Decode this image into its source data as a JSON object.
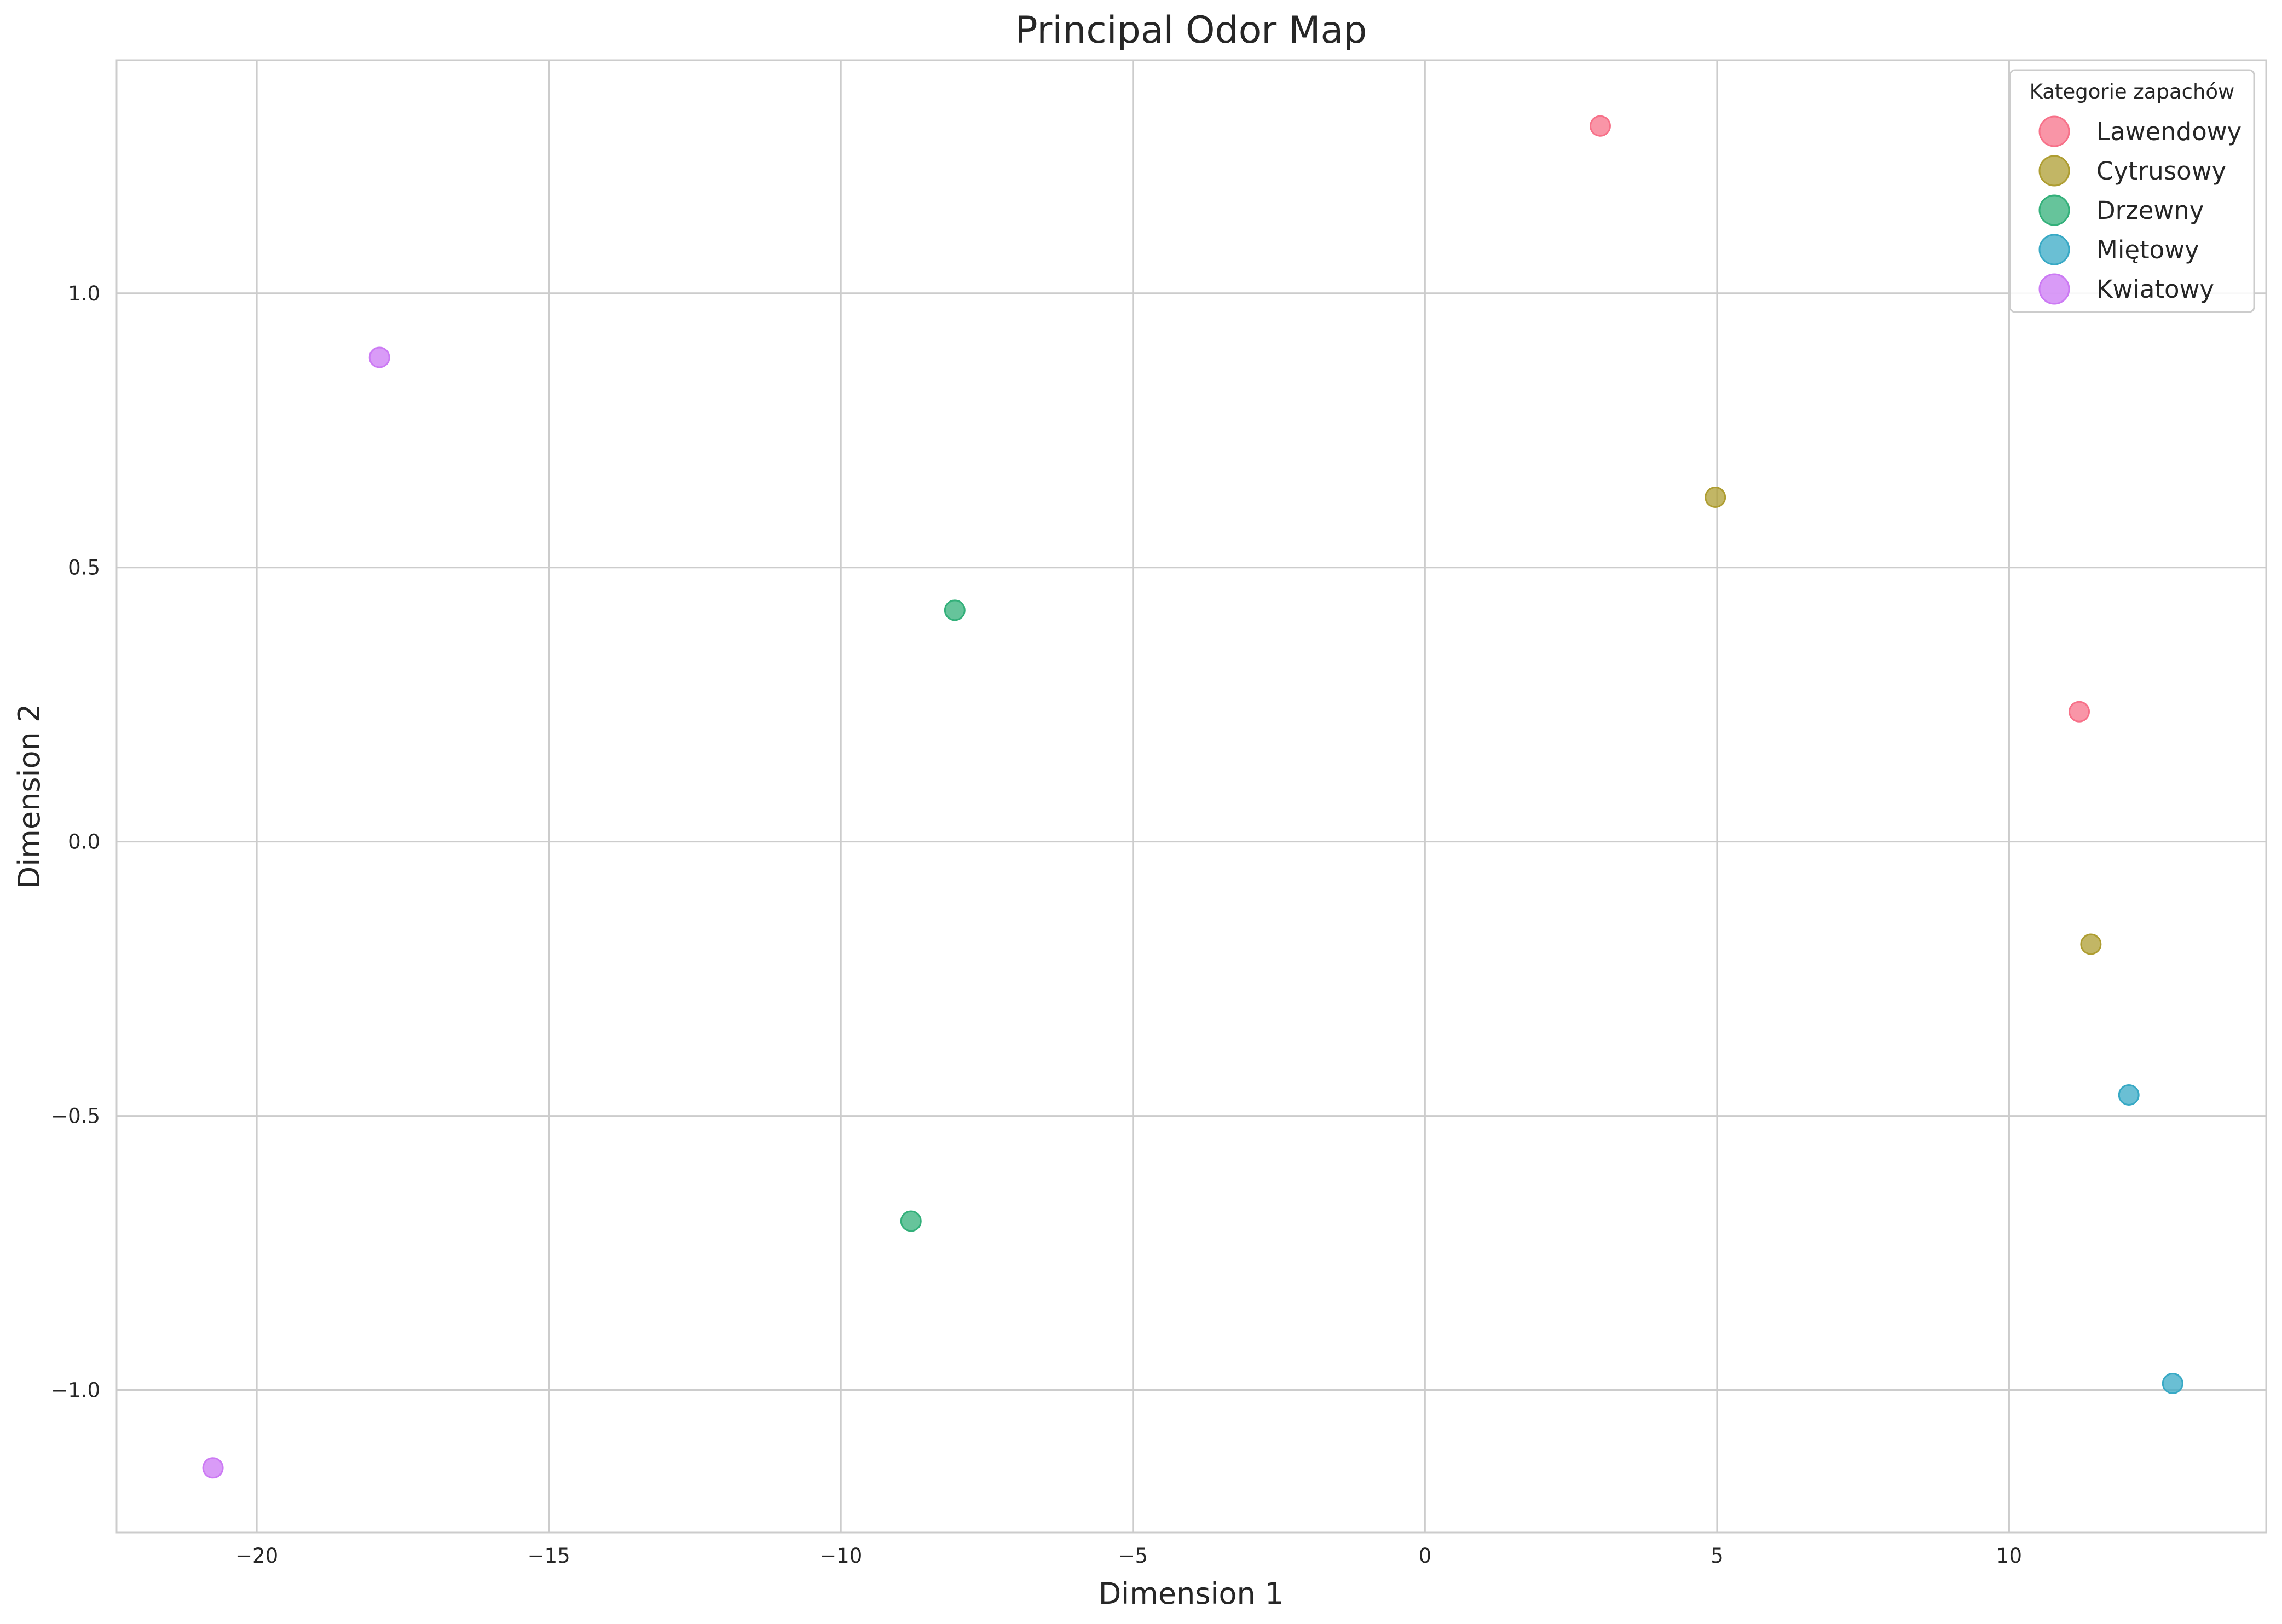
{
  "chart_data": {
    "type": "scatter",
    "title": "Principal Odor Map",
    "xlabel": "Dimension 1",
    "ylabel": "Dimension 2",
    "xlim": [
      -22.4,
      14.4
    ],
    "ylim": [
      -1.26,
      1.425
    ],
    "xticks": [
      -20,
      -15,
      -10,
      -5,
      0,
      5,
      10
    ],
    "xtick_labels": [
      "−20",
      "−15",
      "−10",
      "−5",
      "0",
      "5",
      "10"
    ],
    "yticks": [
      -1.0,
      -0.5,
      0.0,
      0.5,
      1.0
    ],
    "ytick_labels": [
      "−1.0",
      "−0.5",
      "0.0",
      "0.5",
      "1.0"
    ],
    "grid": true,
    "legend": {
      "title": "Kategorie zapachów",
      "placement": "top-right"
    },
    "series": [
      {
        "name": "Lawendowy",
        "color": "#f77189",
        "points": [
          {
            "x": 3.0,
            "y": 1.305
          },
          {
            "x": 11.2,
            "y": 0.237
          }
        ]
      },
      {
        "name": "Cytrusowy",
        "color": "#ae9d31",
        "points": [
          {
            "x": 4.97,
            "y": 0.628
          },
          {
            "x": 11.4,
            "y": -0.187
          }
        ]
      },
      {
        "name": "Drzewny",
        "color": "#33b07a",
        "points": [
          {
            "x": -8.05,
            "y": 0.422
          },
          {
            "x": -8.8,
            "y": -0.692
          }
        ]
      },
      {
        "name": "Miętowy",
        "color": "#38a9c5",
        "points": [
          {
            "x": 12.05,
            "y": -0.462
          },
          {
            "x": 12.8,
            "y": -0.988
          }
        ]
      },
      {
        "name": "Kwiatowy",
        "color": "#cc7af4",
        "points": [
          {
            "x": -17.9,
            "y": 0.883
          },
          {
            "x": -20.75,
            "y": -1.142
          }
        ]
      }
    ]
  }
}
